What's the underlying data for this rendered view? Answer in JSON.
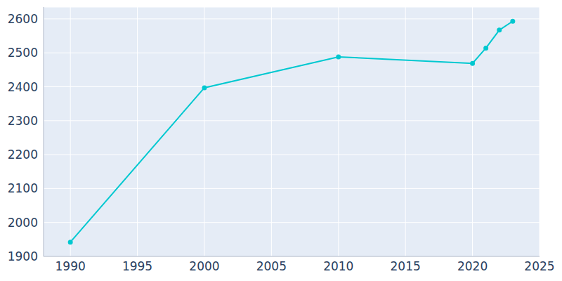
{
  "chart_data": {
    "type": "line",
    "x": [
      1990,
      2000,
      2010,
      2020,
      2021,
      2022,
      2023
    ],
    "values": [
      1942,
      2397,
      2488,
      2469,
      2514,
      2567,
      2593
    ],
    "color": "#00c8d0",
    "marker": "circle",
    "xlim": [
      1988,
      2025
    ],
    "xticks": [
      1990,
      1995,
      2000,
      2005,
      2010,
      2015,
      2020,
      2025
    ],
    "ylim": [
      1900,
      2635
    ],
    "yticks": [
      1900,
      2000,
      2100,
      2200,
      2300,
      2400,
      2500,
      2600
    ],
    "grid": true
  }
}
